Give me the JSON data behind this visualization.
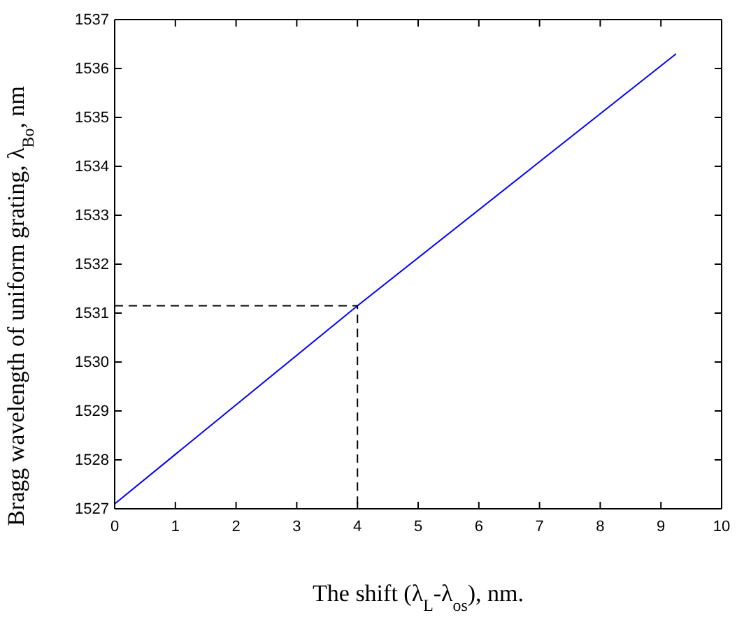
{
  "chart_data": {
    "type": "line",
    "xlabel": "The shift (λ$_{L}$-λ$_{os}$), nm.",
    "ylabel": "Bragg wavelength of uniform grating, λ$_{Bo}$, nm",
    "xlim": [
      0,
      10
    ],
    "xticks": [
      0,
      1,
      2,
      3,
      4,
      5,
      6,
      7,
      8,
      9,
      10
    ],
    "ylim": [
      1527,
      1537
    ],
    "yticks": [
      1527,
      1528,
      1529,
      1530,
      1531,
      1532,
      1533,
      1534,
      1535,
      1536,
      1537
    ],
    "grid": false,
    "series": [
      {
        "color": "#0000ff",
        "line_style": "solid",
        "x": [
          0,
          4,
          9.25
        ],
        "values": [
          1527.1,
          1531.15,
          1536.3
        ]
      },
      {
        "color": "#000000",
        "line_style": "dashed",
        "x": [
          0,
          4,
          4
        ],
        "values": [
          1531.15,
          1531.15,
          1527
        ]
      }
    ]
  }
}
